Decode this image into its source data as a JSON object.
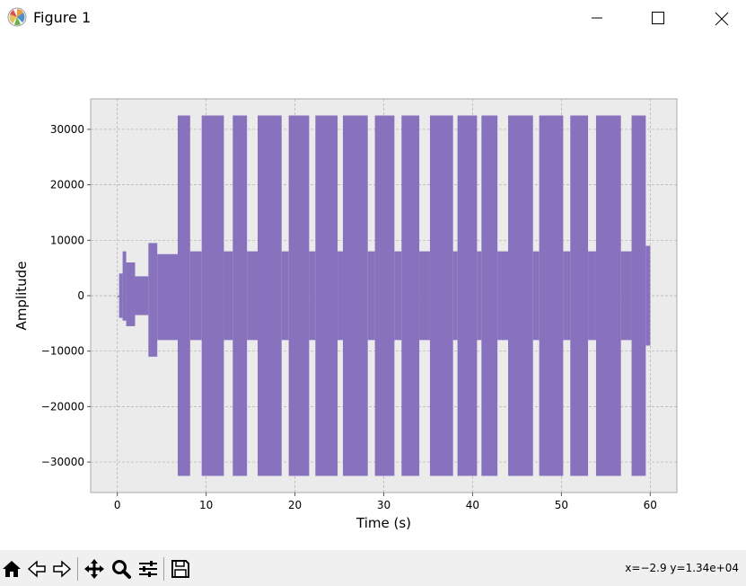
{
  "window": {
    "title": "Figure 1",
    "icons": [
      "matplotlib-logo-icon",
      "minimize-icon",
      "maximize-icon",
      "close-icon"
    ]
  },
  "toolbar": {
    "buttons": [
      "home-icon",
      "back-arrow-icon",
      "forward-arrow-icon",
      "pan-move-icon",
      "zoom-magnifier-icon",
      "configure-subplots-icon",
      "save-floppy-icon"
    ],
    "coords": "x=−2.9 y=1.34e+04"
  },
  "chart_data": {
    "type": "line",
    "title": "",
    "xlabel": "Time (s)",
    "ylabel": "Amplitude",
    "xlim": [
      -3,
      63
    ],
    "ylim": [
      -35500,
      35500
    ],
    "xticks": [
      0,
      10,
      20,
      30,
      40,
      50,
      60
    ],
    "xtick_labels": [
      "0",
      "10",
      "20",
      "30",
      "40",
      "50",
      "60"
    ],
    "yticks": [
      -30000,
      -20000,
      -10000,
      0,
      10000,
      20000,
      30000
    ],
    "ytick_labels": [
      "−30000",
      "−20000",
      "−10000",
      "0",
      "10000",
      "20000",
      "30000"
    ],
    "grid": true,
    "series_color": "#8872bd",
    "axes_background": "#ebebeb",
    "grid_color": "#b0b0b0",
    "segments": [
      {
        "x": [
          0.0,
          0.2
        ],
        "ymin": 0,
        "ymax": 0
      },
      {
        "x": [
          0.2,
          0.6
        ],
        "ymin": -4000,
        "ymax": 4000
      },
      {
        "x": [
          0.6,
          1.0
        ],
        "ymin": -4500,
        "ymax": 8000
      },
      {
        "x": [
          1.0,
          2.0
        ],
        "ymin": -5500,
        "ymax": 6000
      },
      {
        "x": [
          2.0,
          3.5
        ],
        "ymin": -3500,
        "ymax": 3500
      },
      {
        "x": [
          3.5,
          4.5
        ],
        "ymin": -11000,
        "ymax": 9500
      },
      {
        "x": [
          4.5,
          6.8
        ],
        "ymin": -8000,
        "ymax": 7500
      },
      {
        "x": [
          6.8,
          8.2
        ],
        "ymin": -32500,
        "ymax": 32500
      },
      {
        "x": [
          8.2,
          9.5
        ],
        "ymin": -8000,
        "ymax": 8000
      },
      {
        "x": [
          9.5,
          12.0
        ],
        "ymin": -32500,
        "ymax": 32500
      },
      {
        "x": [
          12.0,
          13.0
        ],
        "ymin": -8000,
        "ymax": 8000
      },
      {
        "x": [
          13.0,
          14.6
        ],
        "ymin": -32500,
        "ymax": 32500
      },
      {
        "x": [
          14.6,
          15.8
        ],
        "ymin": -8000,
        "ymax": 8000
      },
      {
        "x": [
          15.8,
          18.5
        ],
        "ymin": -32500,
        "ymax": 32500
      },
      {
        "x": [
          18.5,
          19.3
        ],
        "ymin": -8000,
        "ymax": 8000
      },
      {
        "x": [
          19.3,
          21.6
        ],
        "ymin": -32500,
        "ymax": 32500
      },
      {
        "x": [
          21.6,
          22.3
        ],
        "ymin": -8000,
        "ymax": 8000
      },
      {
        "x": [
          22.3,
          24.8
        ],
        "ymin": -32500,
        "ymax": 32500
      },
      {
        "x": [
          24.8,
          25.4
        ],
        "ymin": -8000,
        "ymax": 8000
      },
      {
        "x": [
          25.4,
          28.2
        ],
        "ymin": -32500,
        "ymax": 32500
      },
      {
        "x": [
          28.2,
          29.0
        ],
        "ymin": -8000,
        "ymax": 8000
      },
      {
        "x": [
          29.0,
          31.2
        ],
        "ymin": -32500,
        "ymax": 32500
      },
      {
        "x": [
          31.2,
          32.0
        ],
        "ymin": -8000,
        "ymax": 8000
      },
      {
        "x": [
          32.0,
          34.0
        ],
        "ymin": -32500,
        "ymax": 32500
      },
      {
        "x": [
          34.0,
          35.2
        ],
        "ymin": -8000,
        "ymax": 8000
      },
      {
        "x": [
          35.2,
          37.8
        ],
        "ymin": -32500,
        "ymax": 32500
      },
      {
        "x": [
          37.8,
          38.3
        ],
        "ymin": -8000,
        "ymax": 8000
      },
      {
        "x": [
          38.3,
          40.5
        ],
        "ymin": -32500,
        "ymax": 32500
      },
      {
        "x": [
          40.5,
          41.0
        ],
        "ymin": -8000,
        "ymax": 8000
      },
      {
        "x": [
          41.0,
          42.8
        ],
        "ymin": -32500,
        "ymax": 32500
      },
      {
        "x": [
          42.8,
          44.0
        ],
        "ymin": -8000,
        "ymax": 8000
      },
      {
        "x": [
          44.0,
          46.8
        ],
        "ymin": -32500,
        "ymax": 32500
      },
      {
        "x": [
          46.8,
          47.5
        ],
        "ymin": -8000,
        "ymax": 8000
      },
      {
        "x": [
          47.5,
          50.2
        ],
        "ymin": -32500,
        "ymax": 32500
      },
      {
        "x": [
          50.2,
          51.0
        ],
        "ymin": -8000,
        "ymax": 8000
      },
      {
        "x": [
          51.0,
          53.0
        ],
        "ymin": -32500,
        "ymax": 32500
      },
      {
        "x": [
          53.0,
          53.9
        ],
        "ymin": -8000,
        "ymax": 8000
      },
      {
        "x": [
          53.9,
          56.7
        ],
        "ymin": -32500,
        "ymax": 32500
      },
      {
        "x": [
          56.7,
          57.9
        ],
        "ymin": -8000,
        "ymax": 8000
      },
      {
        "x": [
          57.9,
          59.5
        ],
        "ymin": -32500,
        "ymax": 32500
      },
      {
        "x": [
          59.5,
          60.0
        ],
        "ymin": -9000,
        "ymax": 9000
      }
    ]
  }
}
